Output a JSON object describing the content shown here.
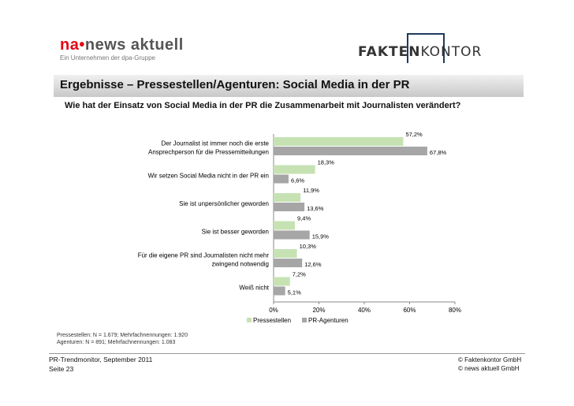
{
  "brand_left": {
    "name_a": "na",
    "name_b": "news aktuell",
    "tagline": "Ein Unternehmen der dpa-Gruppe"
  },
  "brand_right": {
    "name_a": "FAKTEN",
    "name_b": "KONTOR"
  },
  "title": "Ergebnisse – Pressestellen/Agenturen: Social Media in der PR",
  "subtitle": "Wie hat der Einsatz von Social Media in der PR die Zusammenarbeit mit Journalisten verändert?",
  "chart_data": {
    "type": "bar",
    "orientation": "horizontal",
    "categories": [
      [
        "Der Journalist ist immer noch die erste",
        "Ansprechperson für die Pressemitteilungen"
      ],
      [
        "Wir setzen Social Media nicht in der PR ein"
      ],
      [
        "Sie ist unpersönlicher geworden"
      ],
      [
        "Sie ist besser geworden"
      ],
      [
        "Für die eigene PR sind Journalisten nicht mehr",
        "zwingend notwendig"
      ],
      [
        "Weiß nicht"
      ]
    ],
    "series": [
      {
        "name": "Pressestellen",
        "color": "#c6e2b3",
        "values": [
          57.2,
          18.3,
          11.9,
          9.4,
          10.3,
          7.2
        ],
        "labels": [
          "57,2%",
          "18,3%",
          "11,9%",
          "9,4%",
          "10,3%",
          "7,2%"
        ]
      },
      {
        "name": "PR-Agenturen",
        "color": "#a6a6a6",
        "values": [
          67.8,
          6.6,
          13.6,
          15.9,
          12.6,
          5.1
        ],
        "labels": [
          "67,8%",
          "6,6%",
          "13,6%",
          "15,9%",
          "12,6%",
          "5,1%"
        ]
      }
    ],
    "xlim": [
      0,
      80
    ],
    "ticks": [
      "0%",
      "20%",
      "40%",
      "60%",
      "80%"
    ],
    "legend_position": "bottom",
    "grid": false
  },
  "notes": [
    "Pressestellen: N = 1.679; Mehrfachnennungen: 1.920",
    "Agenturen:       N = 891; Mehrfachnennungen: 1.083"
  ],
  "footer": {
    "source": "PR-Trendmonitor, September 2011",
    "page": "Seite 23",
    "copyright_1": "© Faktenkontor GmbH",
    "copyright_2": "© news aktuell GmbH"
  }
}
